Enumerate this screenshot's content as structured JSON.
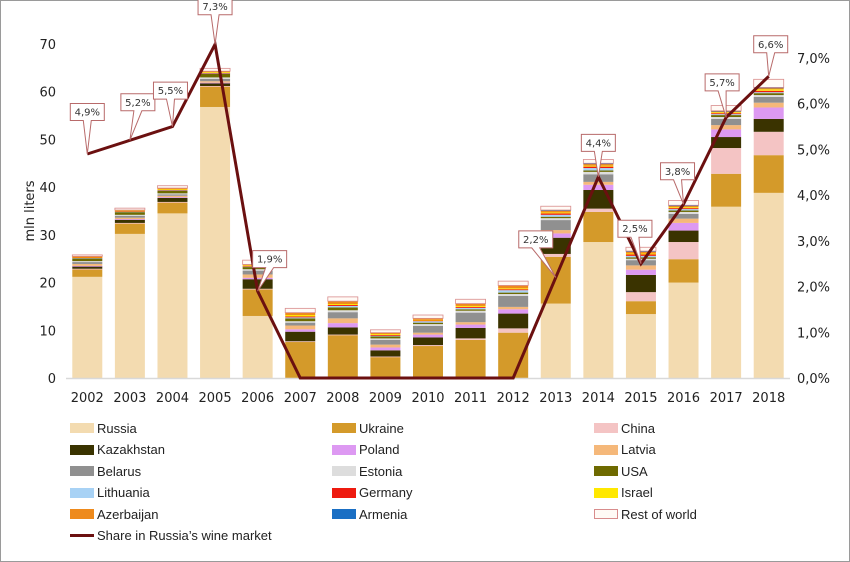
{
  "chart_data": {
    "type": "bar",
    "subtype": "stacked-bar-with-line",
    "title": "",
    "xlabel": "",
    "ylabel": "mln liters",
    "ylim": [
      0,
      70
    ],
    "yticks": [
      0,
      10,
      20,
      30,
      40,
      50,
      60,
      70
    ],
    "y2lim": [
      0,
      7
    ],
    "y2ticks": [
      "0,0%",
      "1,0%",
      "2,0%",
      "3,0%",
      "4,0%",
      "5,0%",
      "6,0%",
      "7,0%"
    ],
    "categories": [
      "2002",
      "2003",
      "2004",
      "2005",
      "2006",
      "2007",
      "2008",
      "2009",
      "2010",
      "2011",
      "2012",
      "2013",
      "2014",
      "2015",
      "2016",
      "2017",
      "2018"
    ],
    "series": [
      {
        "name": "Russia",
        "color": "#f3dbb0",
        "values": [
          21.2,
          30.2,
          34.5,
          56.8,
          13.0,
          0,
          0,
          0,
          0,
          0,
          0,
          15.6,
          28.5,
          13.4,
          20.0,
          35.9,
          38.8
        ]
      },
      {
        "name": "Ukraine",
        "color": "#d49a2a",
        "values": [
          1.6,
          2.2,
          2.3,
          4.3,
          5.6,
          7.6,
          9.0,
          4.4,
          6.7,
          8.0,
          9.5,
          9.8,
          6.3,
          2.7,
          4.9,
          6.9,
          7.9
        ]
      },
      {
        "name": "China",
        "color": "#f4c4c4",
        "values": [
          0.1,
          0.1,
          0.1,
          0.1,
          0.1,
          0.1,
          0.1,
          0.1,
          0.2,
          0.3,
          0.9,
          0.6,
          0.7,
          1.9,
          3.6,
          5.4,
          4.9
        ]
      },
      {
        "name": "Kazakhstan",
        "color": "#3a3300",
        "values": [
          0.5,
          0.7,
          0.9,
          0.6,
          2.0,
          2.0,
          1.5,
          1.3,
          1.6,
          2.2,
          3.1,
          3.4,
          3.9,
          3.6,
          2.4,
          2.3,
          2.7
        ]
      },
      {
        "name": "Poland",
        "color": "#dd99f2",
        "values": [
          0.1,
          0.1,
          0.1,
          0.1,
          0.3,
          0.5,
          0.9,
          0.6,
          0.6,
          0.7,
          0.9,
          0.9,
          1.1,
          1.1,
          1.6,
          1.6,
          2.4
        ]
      },
      {
        "name": "Latvia",
        "color": "#f5b87a",
        "values": [
          0.4,
          0.3,
          0.3,
          0.3,
          0.7,
          0.8,
          1.0,
          0.6,
          0.4,
          0.5,
          0.5,
          0.7,
          0.6,
          0.9,
          0.9,
          0.9,
          1.0
        ]
      },
      {
        "name": "Belarus",
        "color": "#909090",
        "values": [
          0.4,
          0.4,
          0.3,
          0.5,
          0.8,
          0.6,
          1.3,
          1.0,
          1.4,
          2.0,
          2.3,
          2.1,
          1.6,
          1.1,
          1.0,
          1.3,
          1.2
        ]
      },
      {
        "name": "Estonia",
        "color": "#dddddd",
        "values": [
          0.2,
          0.2,
          0.2,
          0.3,
          0.3,
          0.3,
          0.4,
          0.3,
          0.4,
          0.4,
          0.4,
          0.4,
          0.5,
          0.3,
          0.4,
          0.4,
          0.4
        ]
      },
      {
        "name": "USA",
        "color": "#6e6a00",
        "values": [
          0.6,
          0.6,
          0.6,
          0.8,
          0.5,
          0.6,
          0.6,
          0.4,
          0.3,
          0.3,
          0.3,
          0.3,
          0.3,
          0.3,
          0.3,
          0.4,
          0.4
        ]
      },
      {
        "name": "Lithuania",
        "color": "#a8d2f5",
        "values": [
          0.1,
          0.1,
          0.1,
          0.1,
          0.1,
          0.2,
          0.3,
          0.2,
          0.3,
          0.3,
          0.5,
          0.4,
          0.5,
          0.3,
          0.3,
          0.2,
          0.2
        ]
      },
      {
        "name": "Germany",
        "color": "#ee1a0f",
        "values": [
          0.1,
          0.1,
          0.1,
          0.1,
          0.1,
          0.2,
          0.2,
          0.1,
          0.2,
          0.2,
          0.2,
          0.3,
          0.3,
          0.3,
          0.2,
          0.2,
          0.3
        ]
      },
      {
        "name": "Israel",
        "color": "#ffe800",
        "values": [
          0.1,
          0.1,
          0.1,
          0.1,
          0.1,
          0.3,
          0.2,
          0.2,
          0.1,
          0.2,
          0.2,
          0.2,
          0.2,
          0.2,
          0.2,
          0.2,
          0.3
        ]
      },
      {
        "name": "Azerbaijan",
        "color": "#ee8a1c",
        "values": [
          0.1,
          0.1,
          0.2,
          0.2,
          0.2,
          0.5,
          0.6,
          0.3,
          0.3,
          0.5,
          0.6,
          0.4,
          0.4,
          0.4,
          0.3,
          0.2,
          0.3
        ]
      },
      {
        "name": "Armenia",
        "color": "#1a6fc4",
        "values": [
          0.0,
          0.0,
          0.0,
          0.0,
          0.0,
          0.0,
          0.0,
          0.0,
          0.0,
          0.0,
          0.0,
          0.1,
          0.1,
          0.1,
          0.1,
          0.1,
          0.1
        ]
      },
      {
        "name": "Rest of world",
        "color": "#fffaf5",
        "border": "#d88c8c",
        "values": [
          0.3,
          0.4,
          0.5,
          0.6,
          0.9,
          0.9,
          0.9,
          0.6,
          0.7,
          0.9,
          0.9,
          0.8,
          0.8,
          0.8,
          1.0,
          1.1,
          1.7
        ]
      }
    ],
    "line": {
      "name": "Share in Russia's wine market",
      "color": "#6b1010",
      "axis": "right",
      "values": [
        4.9,
        5.2,
        5.5,
        7.3,
        1.9,
        0,
        0,
        0,
        0,
        0,
        0,
        2.2,
        4.4,
        2.5,
        3.8,
        5.7,
        6.6
      ],
      "labels": [
        "4,9%",
        "5,2%",
        "5,5%",
        "7,3%",
        "1,9%",
        "",
        "",
        "",
        "",
        "",
        "",
        "2,2%",
        "4,4%",
        "2,5%",
        "3,8%",
        "5,7%",
        "6,6%"
      ]
    },
    "grid": false,
    "legend_position": "bottom"
  },
  "legend": {
    "items": [
      {
        "label": "Russia",
        "color": "#f3dbb0"
      },
      {
        "label": "Ukraine",
        "color": "#d49a2a"
      },
      {
        "label": "China",
        "color": "#f4c4c4"
      },
      {
        "label": "Kazakhstan",
        "color": "#3a3300"
      },
      {
        "label": "Poland",
        "color": "#dd99f2"
      },
      {
        "label": "Latvia",
        "color": "#f5b87a"
      },
      {
        "label": "Belarus",
        "color": "#909090"
      },
      {
        "label": "Estonia",
        "color": "#dddddd"
      },
      {
        "label": "USA",
        "color": "#6e6a00"
      },
      {
        "label": "Lithuania",
        "color": "#a8d2f5"
      },
      {
        "label": "Germany",
        "color": "#ee1a0f"
      },
      {
        "label": "Israel",
        "color": "#ffe800"
      },
      {
        "label": "Azerbaijan",
        "color": "#ee8a1c"
      },
      {
        "label": "Armenia",
        "color": "#1a6fc4"
      },
      {
        "label": "Rest of world",
        "color": "#fffaf5",
        "border": "#d88c8c"
      }
    ],
    "line_label": "Share in Russia’s wine market",
    "line_color": "#6b1010"
  }
}
